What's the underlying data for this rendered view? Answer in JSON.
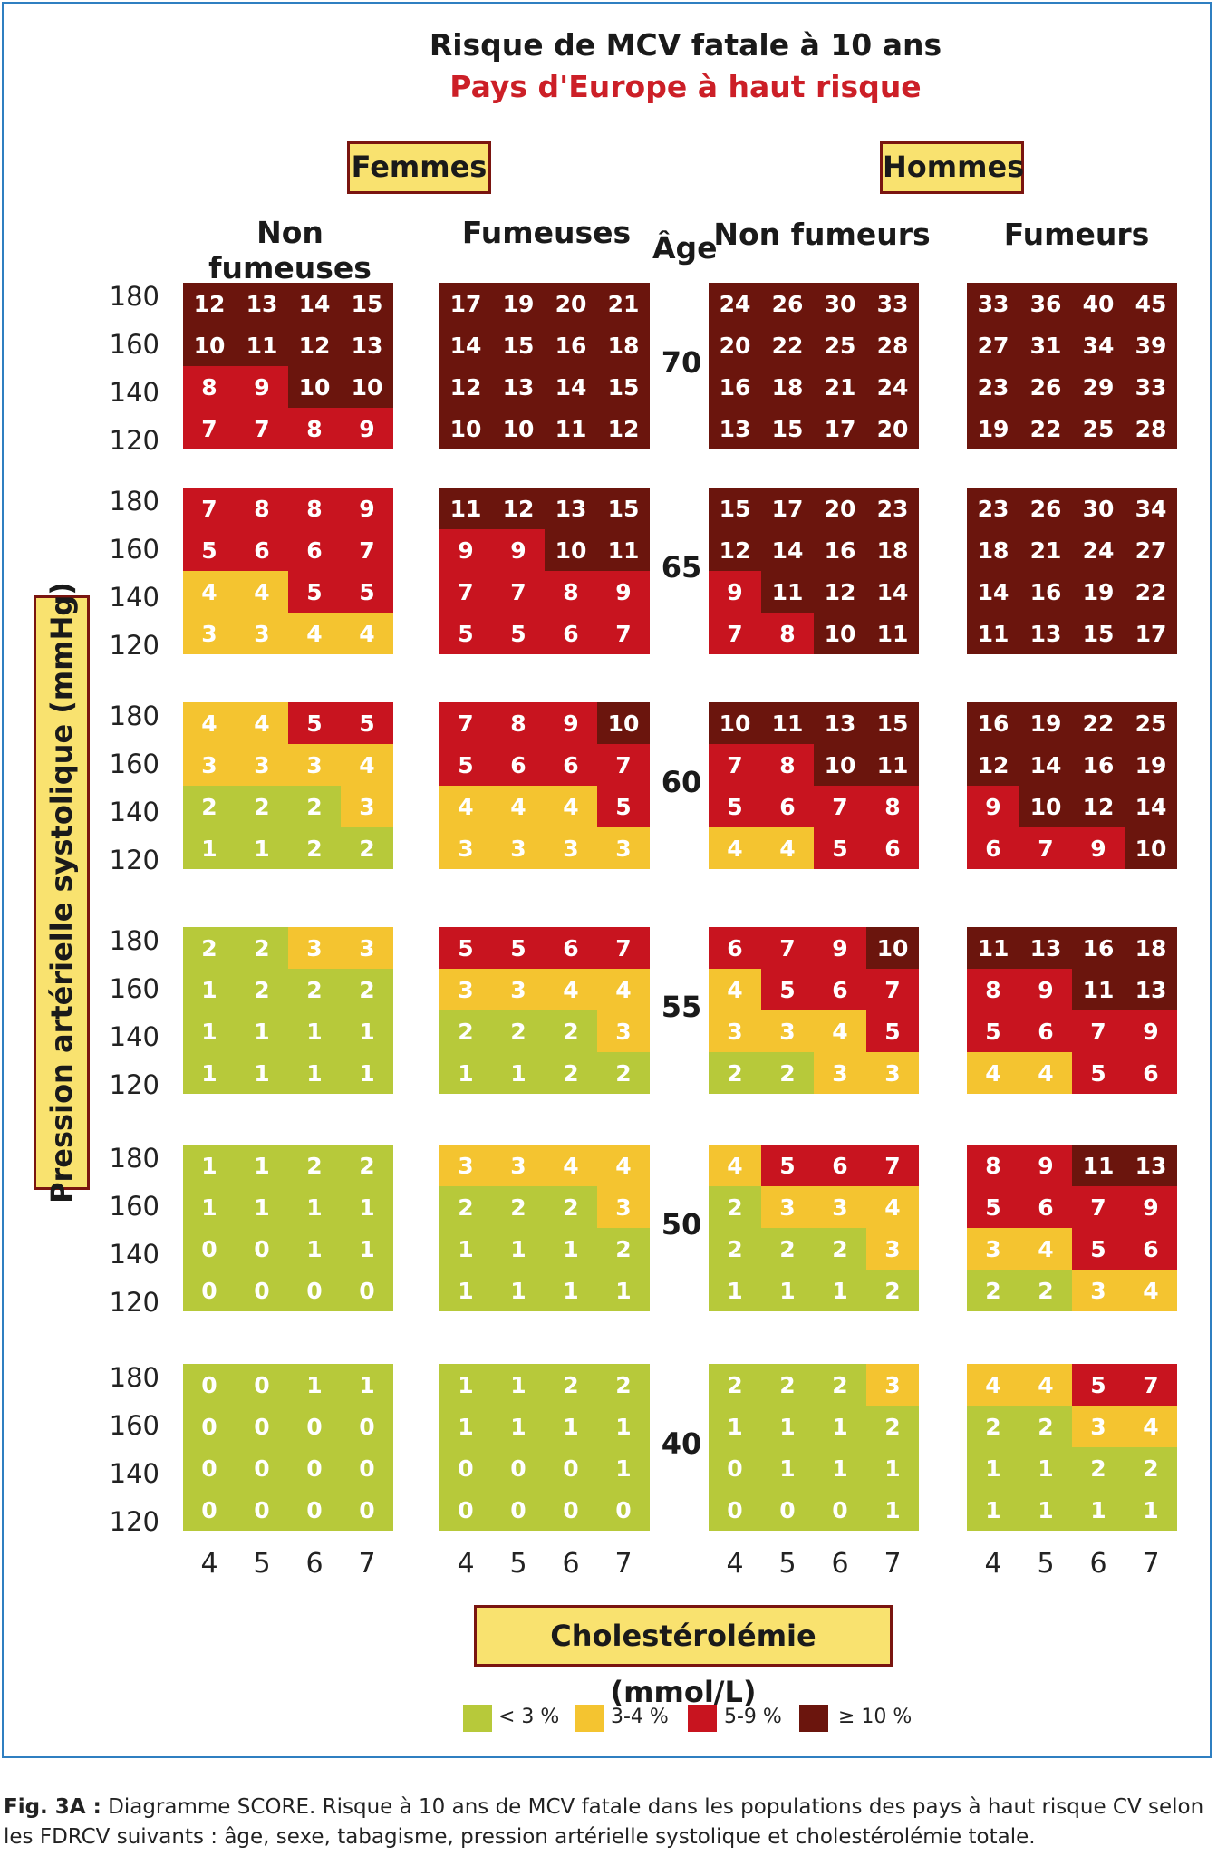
{
  "title": "Risque de MCV fatale à 10 ans",
  "subtitle": "Pays d'Europe à haut risque",
  "sex_labels": [
    "Femmes",
    "Hommes"
  ],
  "group_headers": [
    "Non fumeuses",
    "Fumeuses",
    "Non fumeurs",
    "Fumeurs"
  ],
  "age_header": "Âge",
  "y_axis_label": "Pression artérielle systolique (mmHg)",
  "x_axis_label": "Cholestérolémie (mmol/L)",
  "legend": [
    {
      "label": "< 3 %",
      "color": "#b7c93a"
    },
    {
      "label": "3-4 %",
      "color": "#f4c430"
    },
    {
      "label": "5-9 %",
      "color": "#c8141f"
    },
    {
      "label": "≥ 10 %",
      "color": "#6b150d"
    }
  ],
  "caption": {
    "prefix": "Fig. 3A :",
    "text": "Diagramme SCORE. Risque à 10 ans de MCV fatale dans les populations des pays à haut risque CV selon les FDRCV suivants : âge, sexe, tabagisme, pression artérielle systolique et cholestérolémie totale."
  },
  "chart_data": {
    "type": "heatmap",
    "title": "Risque de MCV fatale à 10 ans",
    "subtitle": "Pays d'Europe à haut risque",
    "xlabel": "Cholestérolémie (mmol/L)",
    "ylabel": "Pression artérielle systolique (mmHg)",
    "cholesterol": [
      4,
      5,
      6,
      7
    ],
    "sbp": [
      180,
      160,
      140,
      120
    ],
    "ages": [
      70,
      65,
      60,
      55,
      50,
      40
    ],
    "groups": [
      "Femmes non fumeuses",
      "Femmes fumeuses",
      "Hommes non fumeurs",
      "Hommes fumeurs"
    ],
    "values": {
      "70": [
        [
          [
            12,
            13,
            14,
            15
          ],
          [
            10,
            11,
            12,
            13
          ],
          [
            8,
            9,
            10,
            10
          ],
          [
            7,
            7,
            8,
            9
          ]
        ],
        [
          [
            17,
            19,
            20,
            21
          ],
          [
            14,
            15,
            16,
            18
          ],
          [
            12,
            13,
            14,
            15
          ],
          [
            10,
            10,
            11,
            12
          ]
        ],
        [
          [
            24,
            26,
            30,
            33
          ],
          [
            20,
            22,
            25,
            28
          ],
          [
            16,
            18,
            21,
            24
          ],
          [
            13,
            15,
            17,
            20
          ]
        ],
        [
          [
            33,
            36,
            40,
            45
          ],
          [
            27,
            31,
            34,
            39
          ],
          [
            23,
            26,
            29,
            33
          ],
          [
            19,
            22,
            25,
            28
          ]
        ]
      ],
      "65": [
        [
          [
            7,
            8,
            8,
            9
          ],
          [
            5,
            6,
            6,
            7
          ],
          [
            4,
            4,
            5,
            5
          ],
          [
            3,
            3,
            4,
            4
          ]
        ],
        [
          [
            11,
            12,
            13,
            15
          ],
          [
            9,
            9,
            10,
            11
          ],
          [
            7,
            7,
            8,
            9
          ],
          [
            5,
            5,
            6,
            7
          ]
        ],
        [
          [
            15,
            17,
            20,
            23
          ],
          [
            12,
            14,
            16,
            18
          ],
          [
            9,
            11,
            12,
            14
          ],
          [
            7,
            8,
            10,
            11
          ]
        ],
        [
          [
            23,
            26,
            30,
            34
          ],
          [
            18,
            21,
            24,
            27
          ],
          [
            14,
            16,
            19,
            22
          ],
          [
            11,
            13,
            15,
            17
          ]
        ]
      ],
      "60": [
        [
          [
            4,
            4,
            5,
            5
          ],
          [
            3,
            3,
            3,
            4
          ],
          [
            2,
            2,
            2,
            3
          ],
          [
            1,
            1,
            2,
            2
          ]
        ],
        [
          [
            7,
            8,
            9,
            10
          ],
          [
            5,
            6,
            6,
            7
          ],
          [
            4,
            4,
            4,
            5
          ],
          [
            3,
            3,
            3,
            3
          ]
        ],
        [
          [
            10,
            11,
            13,
            15
          ],
          [
            7,
            8,
            10,
            11
          ],
          [
            5,
            6,
            7,
            8
          ],
          [
            4,
            4,
            5,
            6
          ]
        ],
        [
          [
            16,
            19,
            22,
            25
          ],
          [
            12,
            14,
            16,
            19
          ],
          [
            9,
            10,
            12,
            14
          ],
          [
            6,
            7,
            9,
            10
          ]
        ]
      ],
      "55": [
        [
          [
            2,
            2,
            3,
            3
          ],
          [
            1,
            2,
            2,
            2
          ],
          [
            1,
            1,
            1,
            1
          ],
          [
            1,
            1,
            1,
            1
          ]
        ],
        [
          [
            5,
            5,
            6,
            7
          ],
          [
            3,
            3,
            4,
            4
          ],
          [
            2,
            2,
            2,
            3
          ],
          [
            1,
            1,
            2,
            2
          ]
        ],
        [
          [
            6,
            7,
            9,
            10
          ],
          [
            4,
            5,
            6,
            7
          ],
          [
            3,
            3,
            4,
            5
          ],
          [
            2,
            2,
            3,
            3
          ]
        ],
        [
          [
            11,
            13,
            16,
            18
          ],
          [
            8,
            9,
            11,
            13
          ],
          [
            5,
            6,
            7,
            9
          ],
          [
            4,
            4,
            5,
            6
          ]
        ]
      ],
      "50": [
        [
          [
            1,
            1,
            2,
            2
          ],
          [
            1,
            1,
            1,
            1
          ],
          [
            0,
            0,
            1,
            1
          ],
          [
            0,
            0,
            0,
            0
          ]
        ],
        [
          [
            3,
            3,
            4,
            4
          ],
          [
            2,
            2,
            2,
            3
          ],
          [
            1,
            1,
            1,
            2
          ],
          [
            1,
            1,
            1,
            1
          ]
        ],
        [
          [
            4,
            5,
            6,
            7
          ],
          [
            2,
            3,
            3,
            4
          ],
          [
            2,
            2,
            2,
            3
          ],
          [
            1,
            1,
            1,
            2
          ]
        ],
        [
          [
            8,
            9,
            11,
            13
          ],
          [
            5,
            6,
            7,
            9
          ],
          [
            3,
            4,
            5,
            6
          ],
          [
            2,
            2,
            3,
            4
          ]
        ]
      ],
      "40": [
        [
          [
            0,
            0,
            1,
            1
          ],
          [
            0,
            0,
            0,
            0
          ],
          [
            0,
            0,
            0,
            0
          ],
          [
            0,
            0,
            0,
            0
          ]
        ],
        [
          [
            1,
            1,
            2,
            2
          ],
          [
            1,
            1,
            1,
            1
          ],
          [
            0,
            0,
            0,
            1
          ],
          [
            0,
            0,
            0,
            0
          ]
        ],
        [
          [
            2,
            2,
            2,
            3
          ],
          [
            1,
            1,
            1,
            2
          ],
          [
            0,
            1,
            1,
            1
          ],
          [
            0,
            0,
            0,
            1
          ]
        ],
        [
          [
            4,
            4,
            5,
            7
          ],
          [
            2,
            2,
            3,
            4
          ],
          [
            1,
            1,
            2,
            2
          ],
          [
            1,
            1,
            1,
            1
          ]
        ]
      ]
    }
  }
}
